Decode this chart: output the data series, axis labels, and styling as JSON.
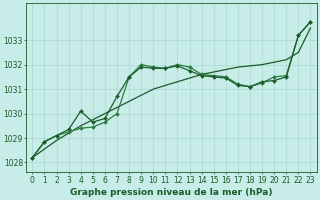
{
  "title": "Graphe pression niveau de la mer (hPa)",
  "bg_color": "#c8ece8",
  "grid_color": "#a8d8d0",
  "line_color_dark": "#1a5c2a",
  "line_color_med": "#2e7d42",
  "x_ticks": [
    0,
    1,
    2,
    3,
    4,
    5,
    6,
    7,
    8,
    9,
    10,
    11,
    12,
    13,
    14,
    15,
    16,
    17,
    18,
    19,
    20,
    21,
    22,
    23
  ],
  "ylim": [
    1027.6,
    1034.5
  ],
  "yticks": [
    1028,
    1029,
    1030,
    1031,
    1032,
    1033
  ],
  "line_straight": [
    1028.2,
    1028.55,
    1028.9,
    1029.2,
    1029.5,
    1029.75,
    1030.0,
    1030.25,
    1030.5,
    1030.75,
    1031.0,
    1031.15,
    1031.3,
    1031.45,
    1031.6,
    1031.7,
    1031.8,
    1031.9,
    1031.95,
    1032.0,
    1032.1,
    1032.2,
    1032.5,
    1033.5
  ],
  "line_upper1": [
    1028.2,
    1028.85,
    1029.1,
    1029.35,
    1030.1,
    1029.65,
    1029.8,
    1030.7,
    1031.5,
    1031.9,
    1031.85,
    1031.85,
    1031.95,
    1031.75,
    1031.55,
    1031.5,
    1031.45,
    1031.15,
    1031.1,
    1031.3,
    1031.35,
    1031.5,
    1033.2,
    1033.75
  ],
  "line_upper2": [
    1028.2,
    1028.85,
    1029.1,
    1029.25,
    1029.4,
    1029.45,
    1029.65,
    1030.0,
    1031.5,
    1032.0,
    1031.9,
    1031.85,
    1032.0,
    1031.9,
    1031.6,
    1031.55,
    1031.5,
    1031.2,
    1031.1,
    1031.25,
    1031.5,
    1031.55,
    1033.2,
    1033.75
  ],
  "tick_fontsize": 5.5,
  "title_fontsize": 6.5
}
